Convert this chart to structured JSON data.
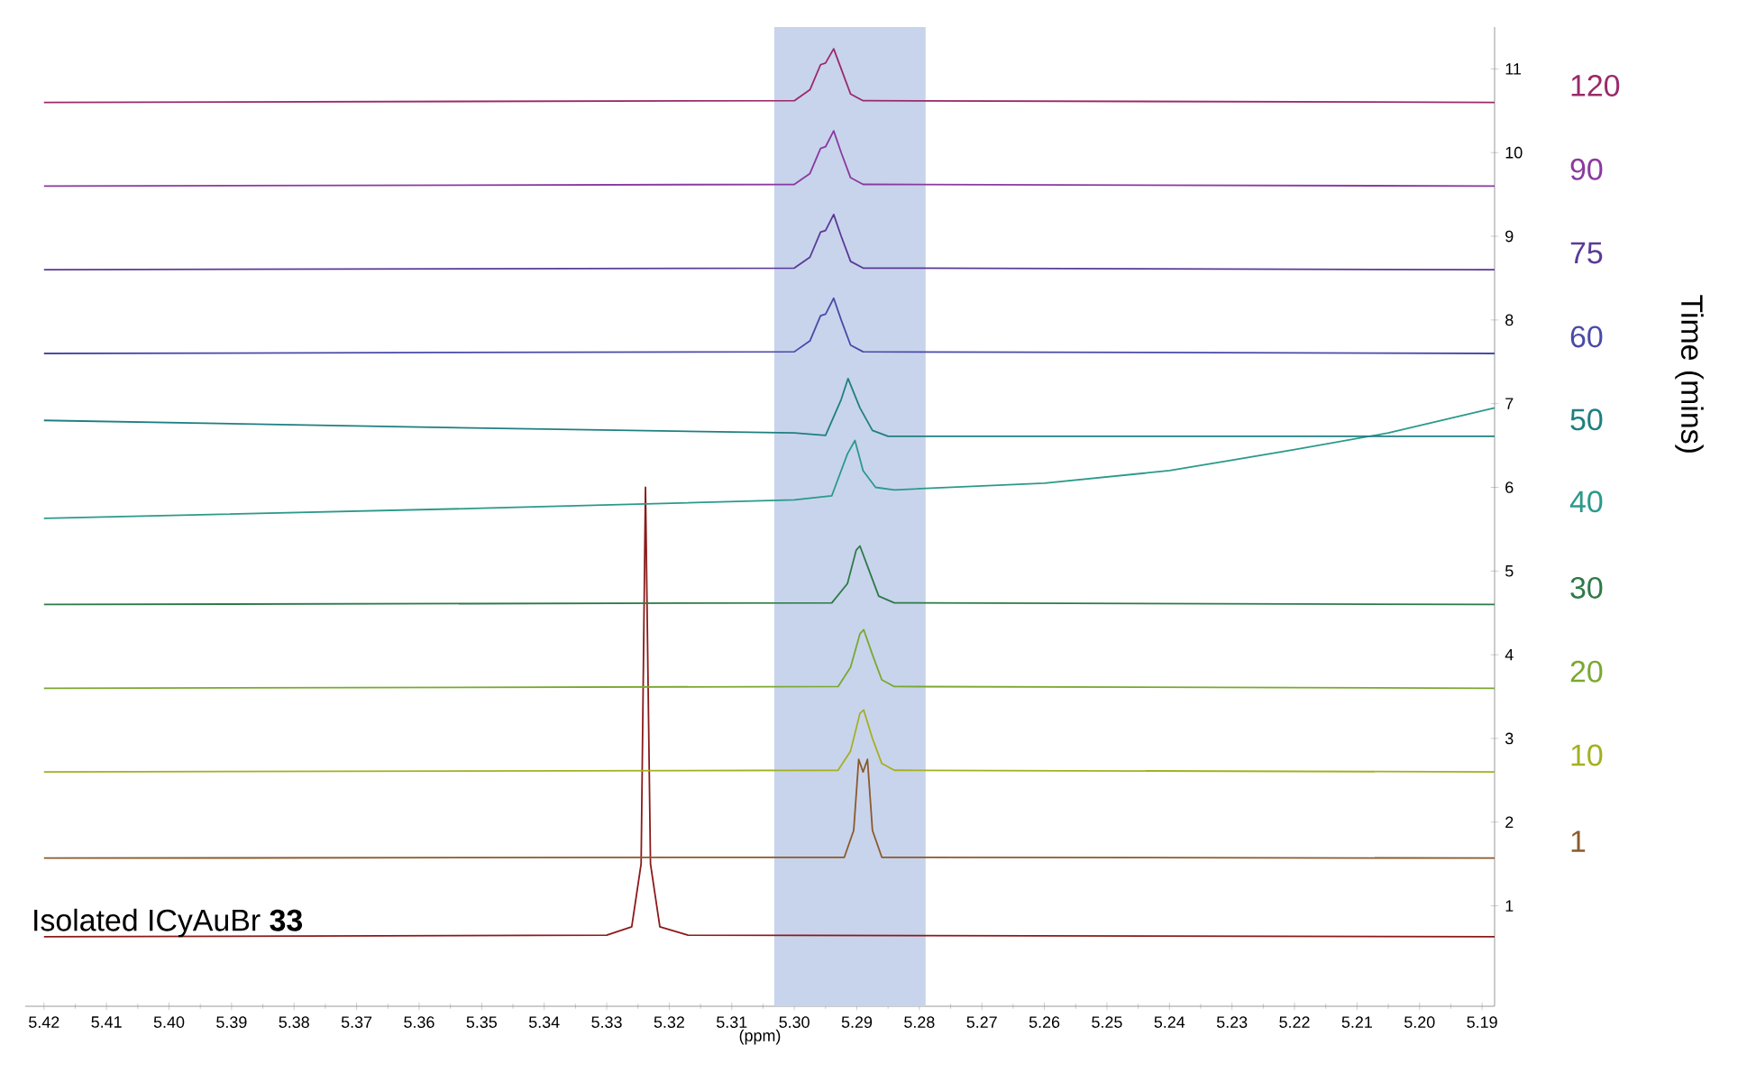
{
  "chart_data": {
    "type": "line",
    "xlabel": "(ppm)",
    "legend_title": "Time (mins)",
    "annotations": [
      "Isolated ICyAuBr **33**"
    ],
    "xlim": [
      5.423,
      5.188
    ],
    "xticks": [
      5.42,
      5.41,
      {
        "value": 5.4,
        "label": "5.40"
      },
      5.39,
      5.38,
      5.37,
      5.36,
      5.35,
      5.34,
      5.33,
      5.32,
      5.31,
      {
        "value": 5.3,
        "label": "5.30"
      },
      5.29,
      5.28,
      5.27,
      5.26,
      5.25,
      5.24,
      5.23,
      5.22,
      5.21,
      {
        "value": 5.2,
        "label": "5.20"
      },
      5.19
    ],
    "ylim": [
      -0.2,
      11.5
    ],
    "yticks": [
      1,
      2,
      3,
      4,
      5,
      6,
      7,
      8,
      9,
      10,
      11
    ],
    "bands": [
      {
        "axis": "x",
        "from": 5.3032,
        "to": 5.279,
        "color": "#c8d4ec"
      }
    ],
    "series": [
      {
        "color": "#8b1a1a",
        "x": [
          5.42,
          5.33,
          5.326,
          5.3245,
          5.3238,
          5.323,
          5.3215,
          5.317,
          5.188
        ],
        "values": [
          0.63,
          0.65,
          0.75,
          1.5,
          6.0,
          1.5,
          0.75,
          0.65,
          0.63
        ]
      },
      {
        "name": "1",
        "color": "#8b5a2b",
        "x": [
          5.42,
          5.292,
          5.2905,
          5.2897,
          5.289,
          5.2883,
          5.2875,
          5.286,
          5.188
        ],
        "values": [
          1.57,
          1.58,
          1.9,
          2.75,
          2.6,
          2.75,
          1.9,
          1.58,
          1.57
        ]
      },
      {
        "name": "10",
        "color": "#a4b020",
        "x": [
          5.42,
          5.293,
          5.291,
          5.2895,
          5.2889,
          5.2875,
          5.286,
          5.284,
          5.188
        ],
        "values": [
          2.6,
          2.62,
          2.85,
          3.3,
          3.34,
          3.0,
          2.7,
          2.62,
          2.6
        ]
      },
      {
        "name": "20",
        "color": "#7aa830",
        "x": [
          5.42,
          5.293,
          5.291,
          5.2895,
          5.2889,
          5.2875,
          5.286,
          5.284,
          5.188
        ],
        "values": [
          3.6,
          3.62,
          3.85,
          4.25,
          4.3,
          4.0,
          3.7,
          3.62,
          3.6
        ]
      },
      {
        "name": "30",
        "color": "#2e7a48",
        "x": [
          5.42,
          5.294,
          5.2915,
          5.2901,
          5.2895,
          5.288,
          5.2865,
          5.284,
          5.188
        ],
        "values": [
          4.6,
          4.62,
          4.85,
          5.25,
          5.3,
          5.0,
          4.7,
          4.62,
          4.6
        ]
      },
      {
        "name": "40",
        "color": "#2a9a8a",
        "x": [
          5.42,
          5.35,
          5.3,
          5.294,
          5.2915,
          5.2903,
          5.289,
          5.287,
          5.284,
          5.26,
          5.24,
          5.22,
          5.205,
          5.188
        ],
        "values": [
          5.63,
          5.75,
          5.85,
          5.9,
          6.4,
          6.56,
          6.2,
          6.0,
          5.97,
          6.05,
          6.2,
          6.45,
          6.65,
          6.95
        ]
      },
      {
        "name": "50",
        "color": "#1f7f80",
        "x": [
          5.42,
          5.36,
          5.3,
          5.295,
          5.2925,
          5.2914,
          5.2895,
          5.2875,
          5.285,
          5.188
        ],
        "values": [
          6.8,
          6.72,
          6.65,
          6.62,
          7.05,
          7.3,
          6.95,
          6.68,
          6.61,
          6.61
        ]
      },
      {
        "name": "60",
        "color": "#4a4aa8",
        "x": [
          5.42,
          5.3,
          5.2975,
          5.2958,
          5.295,
          5.2937,
          5.2925,
          5.291,
          5.289,
          5.188
        ],
        "values": [
          7.6,
          7.62,
          7.75,
          8.05,
          8.07,
          8.26,
          8.0,
          7.7,
          7.62,
          7.6
        ]
      },
      {
        "name": "75",
        "color": "#5a3a96",
        "x": [
          5.42,
          5.3,
          5.2975,
          5.2958,
          5.295,
          5.2937,
          5.2925,
          5.291,
          5.289,
          5.188
        ],
        "values": [
          8.6,
          8.62,
          8.75,
          9.05,
          9.07,
          9.26,
          9.0,
          8.7,
          8.62,
          8.6
        ]
      },
      {
        "name": "90",
        "color": "#8a3aa0",
        "x": [
          5.42,
          5.3,
          5.2975,
          5.2958,
          5.295,
          5.2937,
          5.2925,
          5.291,
          5.289,
          5.188
        ],
        "values": [
          9.6,
          9.62,
          9.75,
          10.05,
          10.07,
          10.26,
          10.0,
          9.7,
          9.62,
          9.6
        ]
      },
      {
        "name": "120",
        "color": "#9a2a6a",
        "x": [
          5.42,
          5.3,
          5.2975,
          5.2958,
          5.295,
          5.2937,
          5.2925,
          5.291,
          5.289,
          5.188
        ],
        "values": [
          10.6,
          10.62,
          10.75,
          11.05,
          11.07,
          11.24,
          11.0,
          10.7,
          10.62,
          10.6
        ]
      }
    ]
  }
}
